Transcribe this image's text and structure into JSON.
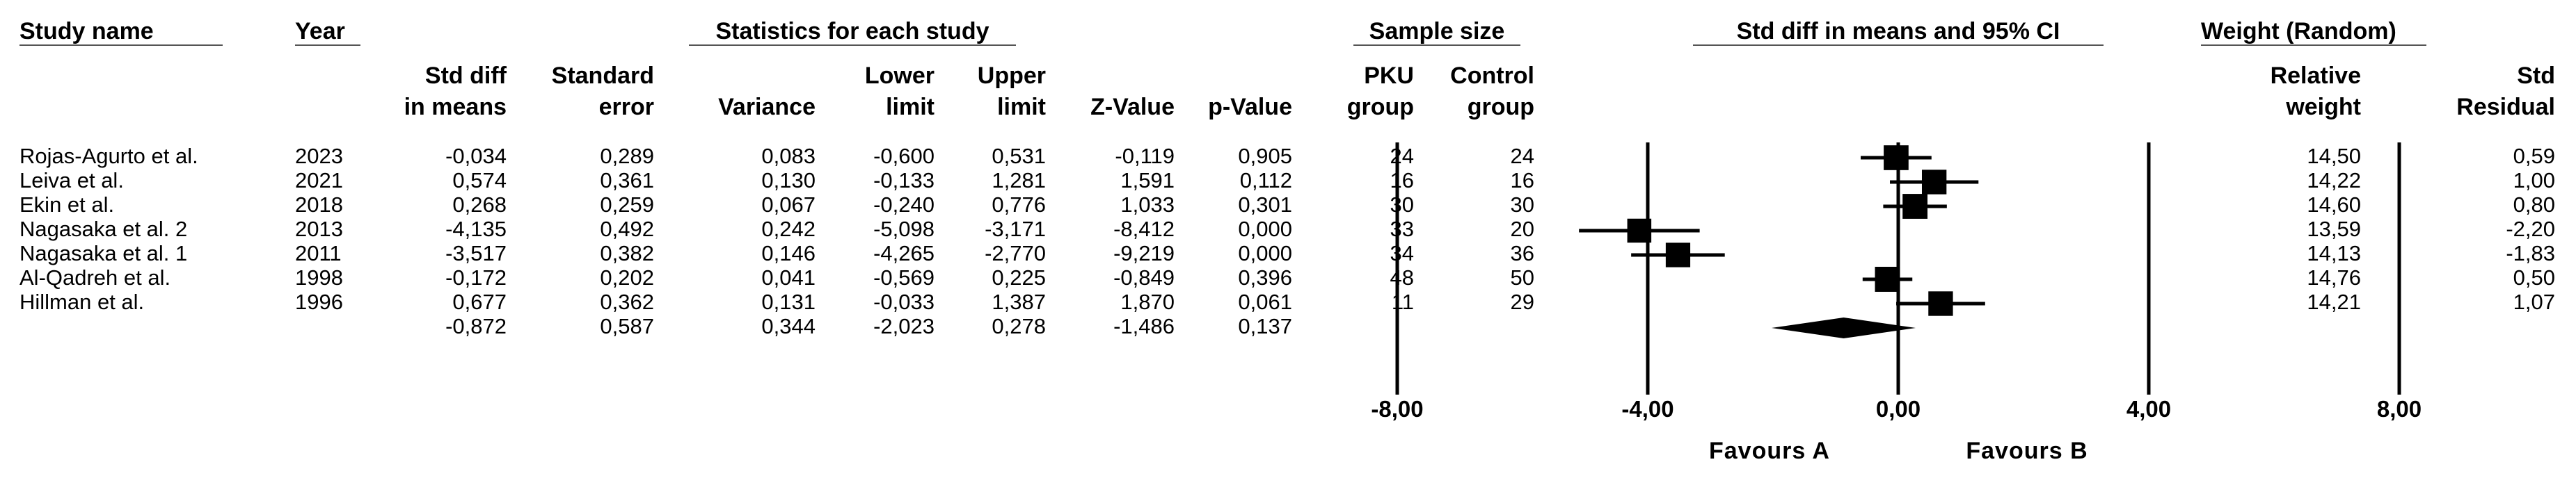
{
  "headers": {
    "study_name": "Study name",
    "year": "Year",
    "stats_group": "Statistics for each study",
    "sample_group": "Sample size",
    "plot_group": "Std diff in means and 95% CI",
    "weight_group": "Weight (Random)",
    "columns": [
      [
        "Std diff",
        "in means"
      ],
      [
        "Standard",
        "error"
      ],
      [
        "Variance"
      ],
      [
        "Lower",
        "limit"
      ],
      [
        "Upper",
        "limit"
      ],
      [
        "Z-Value"
      ],
      [
        "p-Value"
      ],
      [
        "PKU",
        "group"
      ],
      [
        "Control",
        "group"
      ],
      [
        "Relative",
        "weight"
      ],
      [
        "Std",
        "Residual"
      ]
    ]
  },
  "studies": [
    {
      "name": "Rojas-Agurto et al.",
      "year": "2023",
      "smd": "-0,034",
      "se": "0,289",
      "var": "0,083",
      "lower": "-0,600",
      "upper": "0,531",
      "z": "-0,119",
      "p": "0,905",
      "pku": "24",
      "control": "24",
      "weight": "14,50",
      "resid": "0,59"
    },
    {
      "name": "Leiva et al.",
      "year": "2021",
      "smd": "0,574",
      "se": "0,361",
      "var": "0,130",
      "lower": "-0,133",
      "upper": "1,281",
      "z": "1,591",
      "p": "0,112",
      "pku": "16",
      "control": "16",
      "weight": "14,22",
      "resid": "1,00"
    },
    {
      "name": "Ekin et al.",
      "year": "2018",
      "smd": "0,268",
      "se": "0,259",
      "var": "0,067",
      "lower": "-0,240",
      "upper": "0,776",
      "z": "1,033",
      "p": "0,301",
      "pku": "30",
      "control": "30",
      "weight": "14,60",
      "resid": "0,80"
    },
    {
      "name": "Nagasaka et al. 2",
      "year": "2013",
      "smd": "-4,135",
      "se": "0,492",
      "var": "0,242",
      "lower": "-5,098",
      "upper": "-3,171",
      "z": "-8,412",
      "p": "0,000",
      "pku": "33",
      "control": "20",
      "weight": "13,59",
      "resid": "-2,20"
    },
    {
      "name": "Nagasaka et al. 1",
      "year": "2011",
      "smd": "-3,517",
      "se": "0,382",
      "var": "0,146",
      "lower": "-4,265",
      "upper": "-2,770",
      "z": "-9,219",
      "p": "0,000",
      "pku": "34",
      "control": "36",
      "weight": "14,13",
      "resid": "-1,83"
    },
    {
      "name": "Al-Qadreh et al.",
      "year": "1998",
      "smd": "-0,172",
      "se": "0,202",
      "var": "0,041",
      "lower": "-0,569",
      "upper": "0,225",
      "z": "-0,849",
      "p": "0,396",
      "pku": "48",
      "control": "50",
      "weight": "14,76",
      "resid": "0,50"
    },
    {
      "name": "Hillman et al.",
      "year": "1996",
      "smd": "0,677",
      "se": "0,362",
      "var": "0,131",
      "lower": "-0,033",
      "upper": "1,387",
      "z": "1,870",
      "p": "0,061",
      "pku": "11",
      "control": "29",
      "weight": "14,21",
      "resid": "1,07"
    }
  ],
  "summary": {
    "smd": "-0,872",
    "se": "0,587",
    "var": "0,344",
    "lower": "-2,023",
    "upper": "0,278",
    "z": "-1,486",
    "p": "0,137"
  },
  "chart_data": {
    "type": "scatter",
    "subtype": "forest",
    "title": "Std diff in means and 95% CI",
    "x_ticks": [
      -8,
      -4,
      0,
      4,
      8
    ],
    "x_tick_labels": [
      "-8,00",
      "-4,00",
      "0,00",
      "4,00",
      "8,00"
    ],
    "xlim": [
      -8,
      8
    ],
    "favours_left": "Favours A",
    "favours_right": "Favours B",
    "points": [
      {
        "study": "Rojas-Agurto et al.",
        "estimate": -0.034,
        "lower": -0.6,
        "upper": 0.531,
        "weight": 14.5
      },
      {
        "study": "Leiva et al.",
        "estimate": 0.574,
        "lower": -0.133,
        "upper": 1.281,
        "weight": 14.22
      },
      {
        "study": "Ekin et al.",
        "estimate": 0.268,
        "lower": -0.24,
        "upper": 0.776,
        "weight": 14.6
      },
      {
        "study": "Nagasaka et al. 2",
        "estimate": -4.135,
        "lower": -5.098,
        "upper": -3.171,
        "weight": 13.59
      },
      {
        "study": "Nagasaka et al. 1",
        "estimate": -3.517,
        "lower": -4.265,
        "upper": -2.77,
        "weight": 14.13
      },
      {
        "study": "Al-Qadreh et al.",
        "estimate": -0.172,
        "lower": -0.569,
        "upper": 0.225,
        "weight": 14.76
      },
      {
        "study": "Hillman et al.",
        "estimate": 0.677,
        "lower": -0.033,
        "upper": 1.387,
        "weight": 14.21
      }
    ],
    "summary": {
      "estimate": -0.872,
      "lower": -2.023,
      "upper": 0.278
    }
  }
}
